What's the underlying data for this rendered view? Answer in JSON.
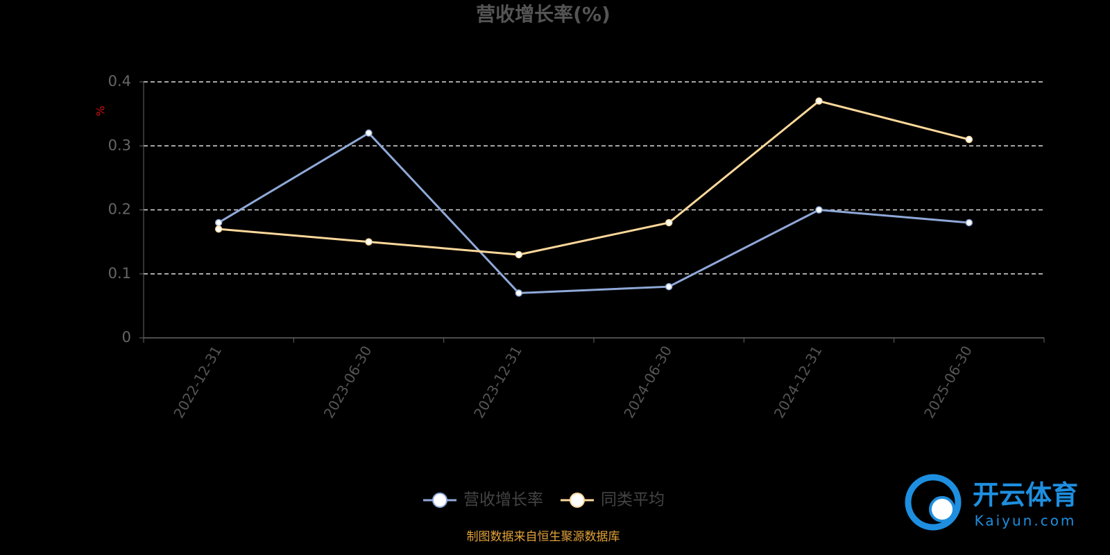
{
  "chart_data": {
    "type": "line",
    "title": "营收增长率(%)",
    "y_label": "%",
    "categories": [
      "2022-12-31",
      "2023-06-30",
      "2023-12-31",
      "2024-06-30",
      "2024-12-31",
      "2025-06-30"
    ],
    "series": [
      {
        "name": "营收增长率",
        "color": "#8fa9d8",
        "values": [
          0.18,
          0.32,
          0.07,
          0.08,
          0.2,
          0.18
        ]
      },
      {
        "name": "同类平均",
        "color": "#fcd89b",
        "values": [
          0.17,
          0.15,
          0.13,
          0.18,
          0.37,
          0.31
        ]
      }
    ],
    "ylim": [
      0,
      0.4
    ],
    "yticks": [
      0,
      0.1,
      0.2,
      0.3,
      0.4
    ],
    "grid": true,
    "source": "制图数据来自恒生聚源数据库",
    "watermark": {
      "brand": "开云体育",
      "site": "Kaiyun.com"
    }
  }
}
